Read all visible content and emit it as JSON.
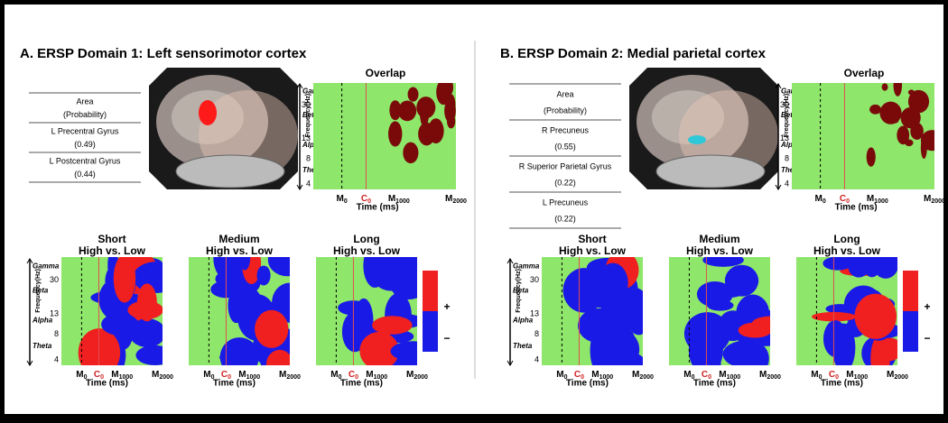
{
  "panels": [
    {
      "title": "A. ERSP Domain 1: Left sensorimotor cortex",
      "table": {
        "header": [
          "Area",
          "(Probability)"
        ],
        "rows": [
          [
            "L Precentral Gyrus",
            "(0.49)"
          ],
          [
            "L Postcentral Gyrus",
            "(0.44)"
          ]
        ]
      },
      "overlap_title": "Overlap",
      "conditions": [
        {
          "title": "Short",
          "subtitle": "High vs. Low"
        },
        {
          "title": "Medium",
          "subtitle": "High vs. Low"
        },
        {
          "title": "Long",
          "subtitle": "High vs. Low"
        }
      ]
    },
    {
      "title": "B.  ERSP Domain 2: Medial parietal cortex",
      "table": {
        "header": [
          "Area",
          "(Probability)"
        ],
        "rows": [
          [
            "R Precuneus",
            "(0.55)"
          ],
          [
            "R Superior Parietal Gyrus",
            "(0.22)"
          ],
          [
            "L Precuneus",
            "(0.22)"
          ]
        ]
      },
      "overlap_title": "Overlap",
      "conditions": [
        {
          "title": "Short",
          "subtitle": "High vs. Low"
        },
        {
          "title": "Medium",
          "subtitle": "High vs. Low"
        },
        {
          "title": "Long",
          "subtitle": "High vs. Low"
        }
      ]
    }
  ],
  "axis": {
    "y_label": "Frequency(Hz)",
    "bands": [
      "Gamma",
      "Beta",
      "Alpha",
      "Theta"
    ],
    "yticks": [
      "30",
      "13",
      "8",
      "4"
    ],
    "x_label": "Time (ms)",
    "xticks": [
      {
        "base": "M",
        "sub": "0"
      },
      {
        "base": "C",
        "sub": "0"
      },
      {
        "base": "M",
        "sub": "1000"
      },
      {
        "base": "M",
        "sub": "2000"
      }
    ]
  },
  "legend": [
    "+",
    "−"
  ]
}
